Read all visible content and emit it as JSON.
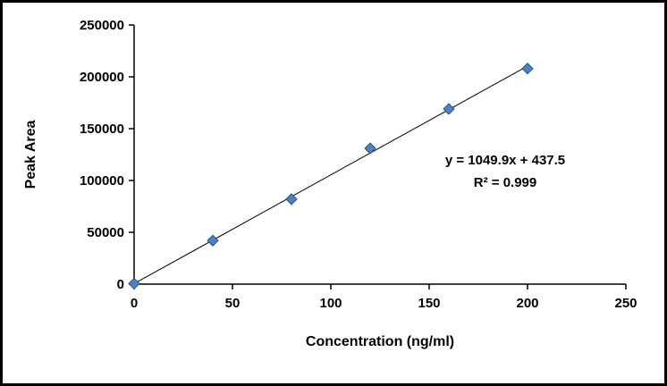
{
  "chart_data": {
    "type": "scatter",
    "title": "",
    "xlabel": "Concentration (ng/ml)",
    "ylabel": "Peak Area",
    "xlim": [
      0,
      250
    ],
    "ylim": [
      0,
      250000
    ],
    "xticks": [
      0,
      50,
      100,
      150,
      200,
      250
    ],
    "yticks": [
      0,
      50000,
      100000,
      150000,
      200000,
      250000
    ],
    "grid": false,
    "legend": false,
    "series": [
      {
        "name": "Peak Area",
        "marker": "diamond",
        "color": "#4F81BD",
        "border_color": "#2C5488",
        "points": [
          [
            0,
            500
          ],
          [
            40,
            42000
          ],
          [
            80,
            82000
          ],
          [
            120,
            131000
          ],
          [
            160,
            169000
          ],
          [
            200,
            208000
          ]
        ]
      }
    ],
    "trendline": {
      "equation": "y = 1049.9x + 437.5",
      "r_squared_label": "R² = 0.999",
      "slope": 1049.9,
      "intercept": 437.5,
      "x_range": [
        0,
        200
      ],
      "color": "#000000"
    },
    "axis_color": "#000000"
  }
}
